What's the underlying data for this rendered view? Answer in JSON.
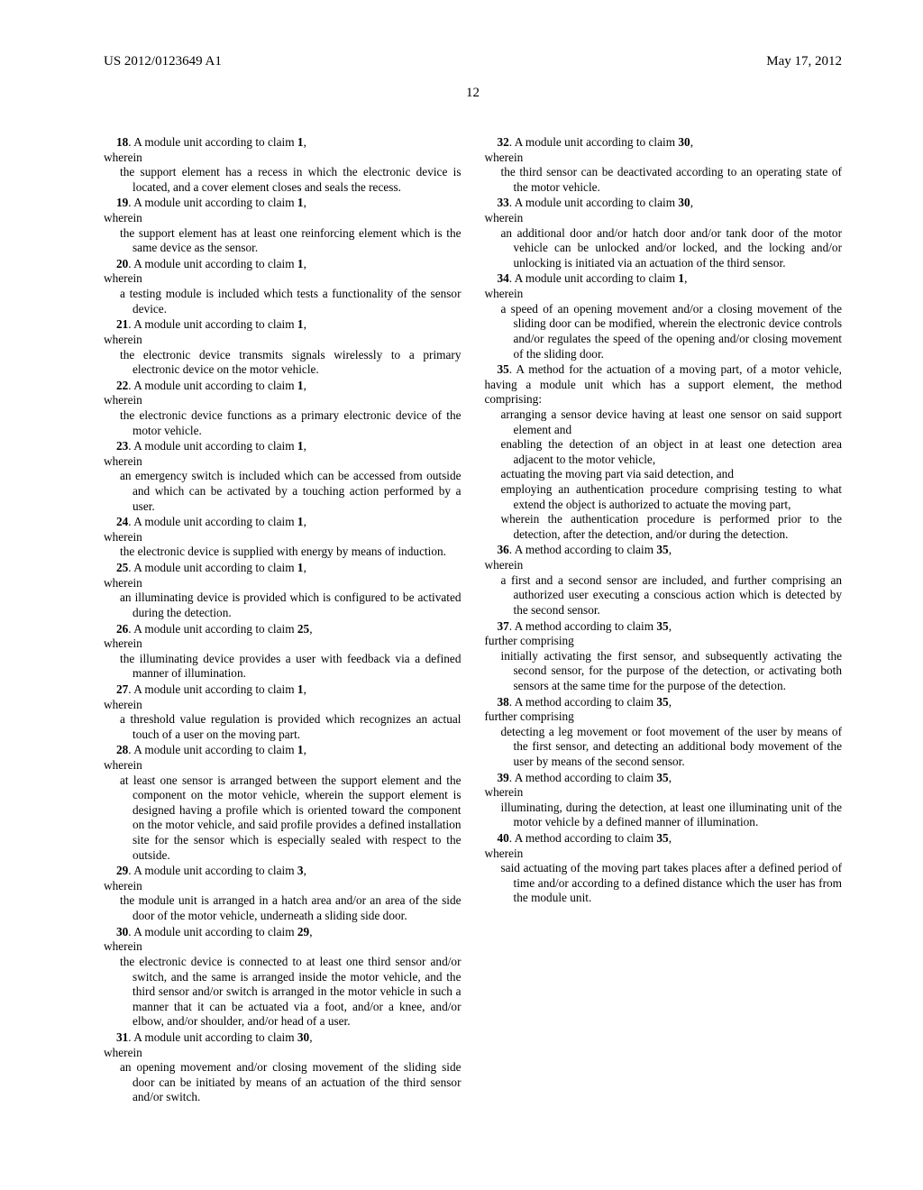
{
  "header": {
    "pubNumber": "US 2012/0123649 A1",
    "pubDate": "May 17, 2012"
  },
  "pageNumber": "12",
  "claims": [
    {
      "num": "18",
      "ref": "1",
      "head": "A module unit according to claim",
      "sub": "wherein",
      "body": "the support element has a recess in which the electronic device is located, and a cover element closes and seals the recess."
    },
    {
      "num": "19",
      "ref": "1",
      "head": "A module unit according to claim",
      "sub": "wherein",
      "body": "the support element has at least one reinforcing element which is the same device as the sensor."
    },
    {
      "num": "20",
      "ref": "1",
      "head": "A module unit according to claim",
      "sub": "wherein",
      "body": "a testing module is included which tests a functionality of the sensor device."
    },
    {
      "num": "21",
      "ref": "1",
      "head": "A module unit according to claim",
      "sub": "wherein",
      "body": "the electronic device transmits signals wirelessly to a primary electronic device on the motor vehicle."
    },
    {
      "num": "22",
      "ref": "1",
      "head": "A module unit according to claim",
      "sub": "wherein",
      "body": "the electronic device functions as a primary electronic device of the motor vehicle."
    },
    {
      "num": "23",
      "ref": "1",
      "head": "A module unit according to claim",
      "sub": "wherein",
      "body": "an emergency switch is included which can be accessed from outside and which can be activated by a touching action performed by a user."
    },
    {
      "num": "24",
      "ref": "1",
      "head": "A module unit according to claim",
      "sub": "wherein",
      "body": "the electronic device is supplied with energy by means of induction."
    },
    {
      "num": "25",
      "ref": "1",
      "head": "A module unit according to claim",
      "sub": "wherein",
      "body": "an illuminating device is provided which is configured to be activated during the detection."
    },
    {
      "num": "26",
      "ref": "25",
      "head": "A module unit according to claim",
      "sub": "wherein",
      "body": "the illuminating device provides a user with feedback via a defined manner of illumination."
    },
    {
      "num": "27",
      "ref": "1",
      "head": "A module unit according to claim",
      "sub": "wherein",
      "body": "a threshold value regulation is provided which recognizes an actual touch of a user on the moving part."
    },
    {
      "num": "28",
      "ref": "1",
      "head": "A module unit according to claim",
      "sub": "wherein",
      "body": "at least one sensor is arranged between the support element and the component on the motor vehicle, wherein the support element is designed having a profile which is oriented toward the component on the motor vehicle, and said profile provides a defined installation site for the sensor which is especially sealed with respect to the outside."
    },
    {
      "num": "29",
      "ref": "3",
      "head": "A module unit according to claim",
      "sub": "wherein",
      "body": "the module unit is arranged in a hatch area and/or an area of the side door of the motor vehicle, underneath a sliding side door."
    },
    {
      "num": "30",
      "ref": "29",
      "head": "A module unit according to claim",
      "sub": "wherein",
      "body": "the electronic device is connected to at least one third sensor and/or switch, and the same is arranged inside the motor vehicle, and the third sensor and/or switch is arranged in the motor vehicle in such a manner that it can be actuated via a foot, and/or a knee, and/or elbow, and/or shoulder, and/or head of a user."
    },
    {
      "num": "31",
      "ref": "30",
      "head": "A module unit according to claim",
      "sub": "wherein",
      "body": "an opening movement and/or closing movement of the sliding side door can be initiated by means of an actuation of the third sensor and/or switch."
    },
    {
      "num": "32",
      "ref": "30",
      "head": "A module unit according to claim",
      "sub": "wherein",
      "body": "the third sensor can be deactivated according to an operating state of the motor vehicle."
    },
    {
      "num": "33",
      "ref": "30",
      "head": "A module unit according to claim",
      "sub": "wherein",
      "body": "an additional door and/or hatch door and/or tank door of the motor vehicle can be unlocked and/or locked, and the locking and/or unlocking is initiated via an actuation of the third sensor."
    },
    {
      "num": "34",
      "ref": "1",
      "head": "A module unit according to claim",
      "sub": "wherein",
      "body": "a speed of an opening movement and/or a closing movement of the sliding door can be modified, wherein the electronic device controls and/or regulates the speed of the opening and/or closing movement of the sliding door."
    }
  ],
  "claim35": {
    "num": "35",
    "intro": "A method for the actuation of a moving part, of a motor vehicle, having a module unit which has a support element, the method comprising:",
    "steps": [
      "arranging a sensor device having at least one sensor on said support element and",
      "enabling the detection of an object in at least one detection area adjacent to the motor vehicle,",
      "actuating the moving part via said detection, and",
      "employing an authentication procedure comprising testing to what extend the object is authorized to actuate the moving part,",
      "wherein the authentication procedure is performed prior to the detection, after the detection, and/or during the detection."
    ]
  },
  "claims2": [
    {
      "num": "36",
      "ref": "35",
      "head": "A method according to claim",
      "sub": "wherein",
      "body": "a first and a second sensor are included, and further comprising an authorized user executing a conscious action which is detected by the second sensor."
    },
    {
      "num": "37",
      "ref": "35",
      "head": "A method according to claim",
      "sub": "further comprising",
      "body": "initially activating the first sensor, and subsequently activating the second sensor, for the purpose of the detection, or activating both sensors at the same time for the purpose of the detection."
    },
    {
      "num": "38",
      "ref": "35",
      "head": "A method according to claim",
      "sub": "further comprising",
      "body": "detecting a leg movement or foot movement of the user by means of the first sensor, and detecting an additional body movement of the user by means of the second sensor."
    },
    {
      "num": "39",
      "ref": "35",
      "head": "A method according to claim",
      "sub": "wherein",
      "body": "illuminating, during the detection, at least one illuminating unit of the motor vehicle by a defined manner of illumination."
    },
    {
      "num": "40",
      "ref": "35",
      "head": "A method according to claim",
      "sub": "wherein",
      "body": "said actuating of the moving part takes places after a defined period of time and/or according to a defined distance which the user has from the module unit."
    }
  ]
}
